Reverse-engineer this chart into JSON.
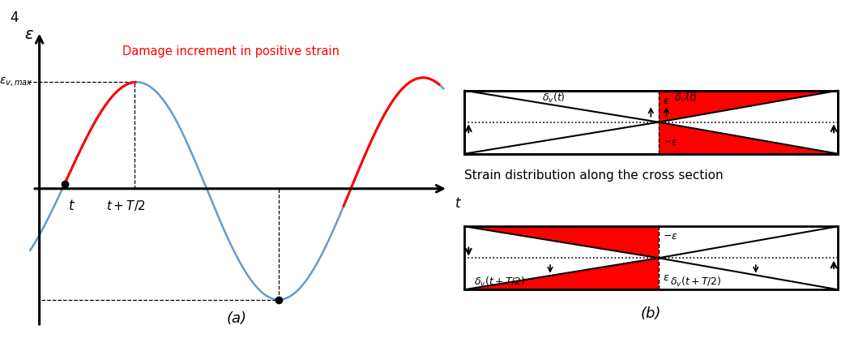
{
  "fig_label": "4",
  "panel_a_label": "(a)",
  "panel_b_label": "(b)",
  "damage_text": "Damage increment in positive strain",
  "damage_text_color": "#ff0000",
  "axis_t_label": "t",
  "sine_color": "#6699cc",
  "red_color": "#ff0000",
  "black_color": "#000000",
  "strain_dist_text": "Strain distribution along the cross section"
}
